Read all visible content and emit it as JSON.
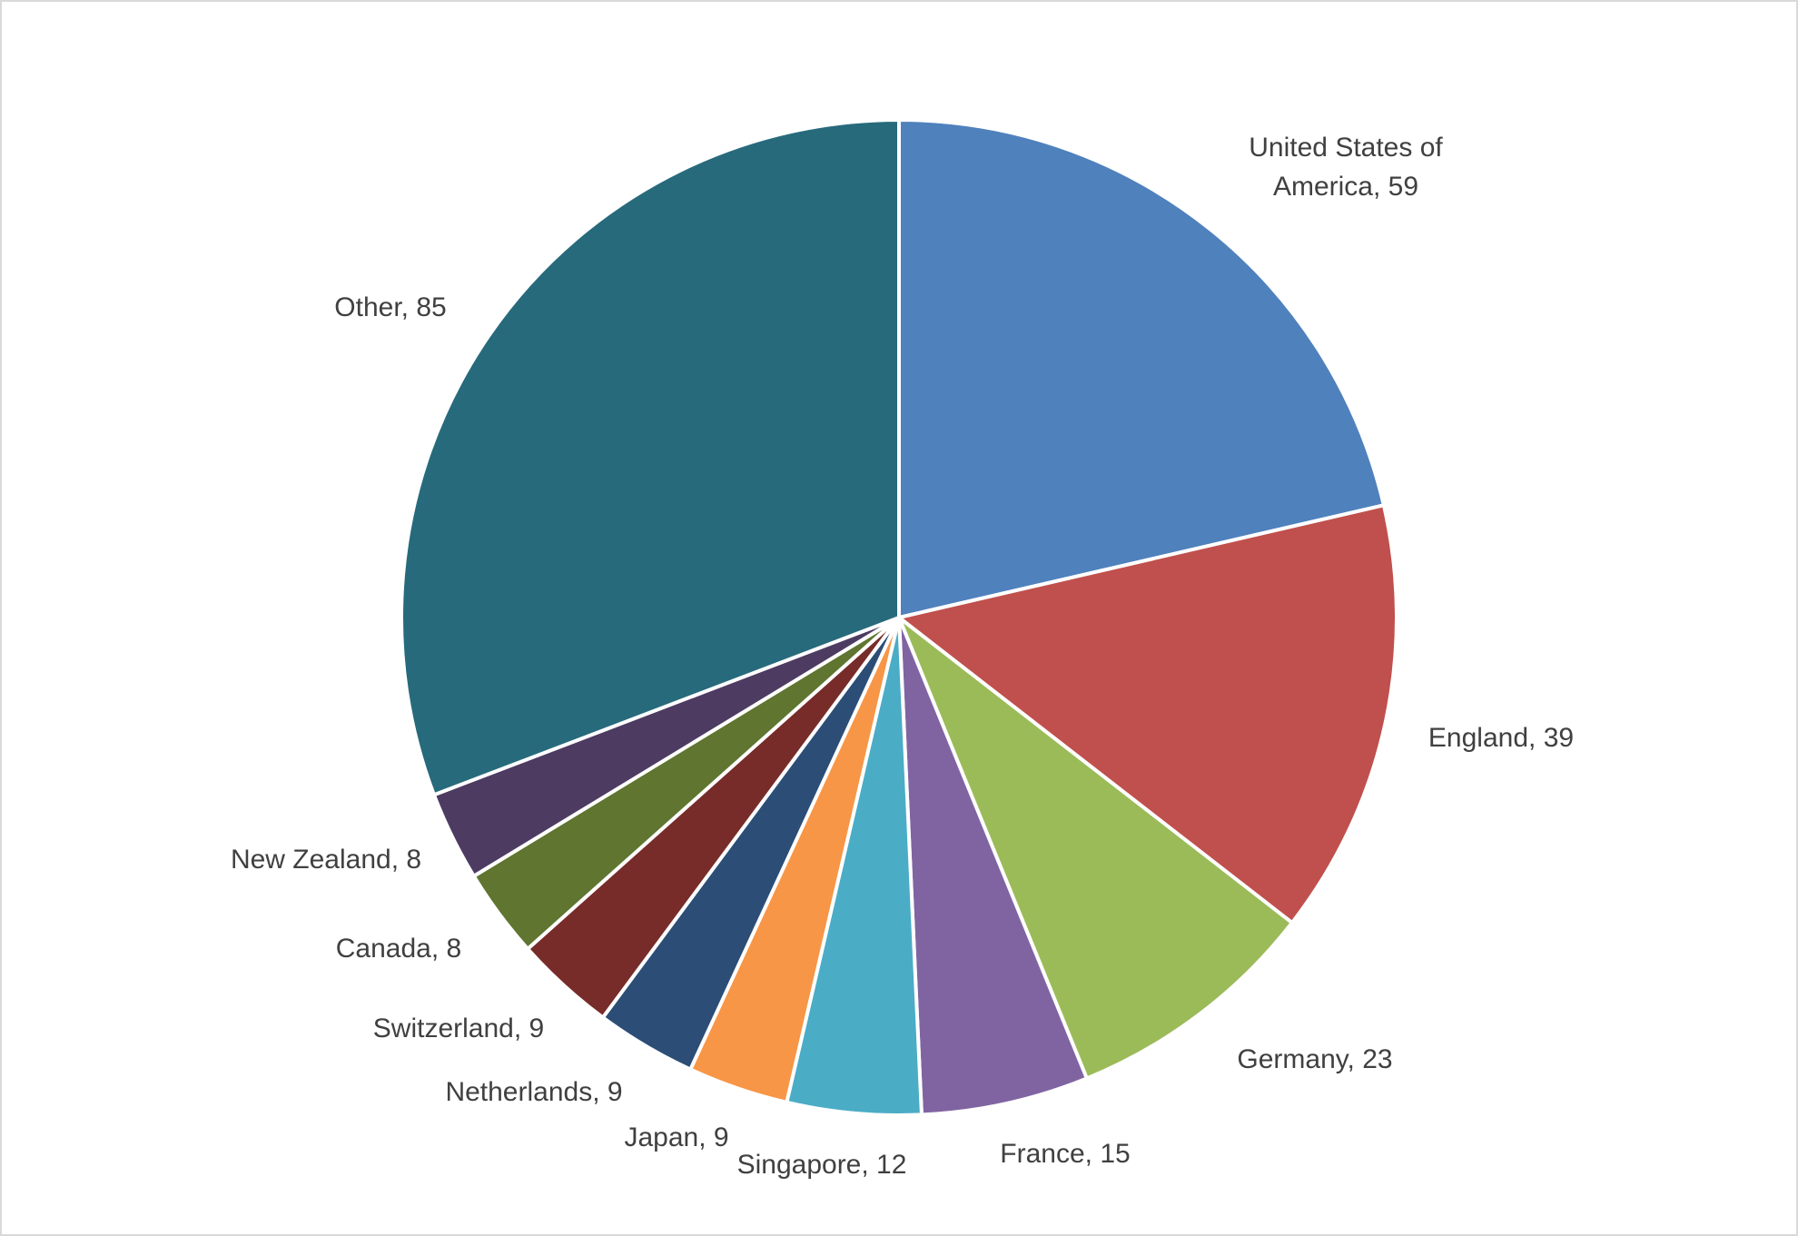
{
  "chart_data": {
    "type": "pie",
    "title": "",
    "start_angle_deg": 0,
    "direction": "clockwise",
    "slice_border_color": "#ffffff",
    "slices": [
      {
        "label": "United States of America",
        "label_lines": [
          "United States of",
          "America, 59"
        ],
        "value": 59,
        "color": "#4F81BD"
      },
      {
        "label": "England",
        "label_lines": [
          "England, 39"
        ],
        "value": 39,
        "color": "#C0504D"
      },
      {
        "label": "Germany",
        "label_lines": [
          "Germany, 23"
        ],
        "value": 23,
        "color": "#9BBB59"
      },
      {
        "label": "France",
        "label_lines": [
          "France, 15"
        ],
        "value": 15,
        "color": "#8064A2"
      },
      {
        "label": "Singapore",
        "label_lines": [
          "Singapore, 12"
        ],
        "value": 12,
        "color": "#4BACC6"
      },
      {
        "label": "Japan",
        "label_lines": [
          "Japan, 9"
        ],
        "value": 9,
        "color": "#F79646"
      },
      {
        "label": "Netherlands",
        "label_lines": [
          "Netherlands, 9"
        ],
        "value": 9,
        "color": "#2C4D75"
      },
      {
        "label": "Switzerland",
        "label_lines": [
          "Switzerland, 9"
        ],
        "value": 9,
        "color": "#772C2A"
      },
      {
        "label": "Canada",
        "label_lines": [
          "Canada, 8"
        ],
        "value": 8,
        "color": "#5F7530"
      },
      {
        "label": "New Zealand",
        "label_lines": [
          "New Zealand, 8"
        ],
        "value": 8,
        "color": "#4D3B62"
      },
      {
        "label": "Other",
        "label_lines": [
          "Other, 85"
        ],
        "value": 85,
        "color": "#276A7C"
      }
    ]
  }
}
